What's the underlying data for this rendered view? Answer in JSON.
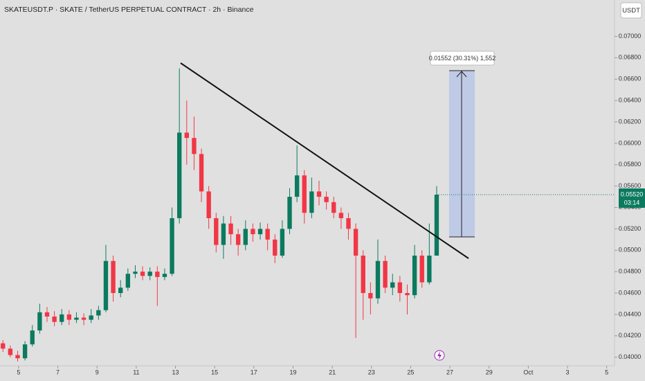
{
  "chart_data": {
    "type": "candlestick",
    "title": "SKATEUSDT.P · SKATE / TetherUS PERPETUAL CONTRACT · 2h · Binance",
    "currency": "USDT",
    "up_color": "#0b7a5e",
    "down_color": "#f23645",
    "x": [
      4.2,
      4.575,
      4.95,
      5.325,
      5.7,
      6.075,
      6.45,
      6.825,
      7.2,
      7.575,
      7.95,
      8.325,
      8.7,
      9.075,
      9.45,
      9.825,
      10.2,
      10.575,
      10.95,
      11.325,
      11.7,
      12.075,
      12.45,
      12.825,
      13.2,
      13.575,
      13.95,
      14.325,
      14.7,
      15.075,
      15.45,
      15.825,
      16.2,
      16.575,
      16.95,
      17.325,
      17.7,
      18.075,
      18.45,
      18.825,
      19.2,
      19.575,
      19.95,
      20.325,
      20.7,
      21.075,
      21.45,
      21.825,
      22.2,
      22.575,
      22.95,
      23.325,
      23.7,
      24.075,
      24.45,
      24.825,
      25.2,
      25.575,
      25.95,
      26.325
    ],
    "open": [
      0.0413,
      0.0408,
      0.0402,
      0.0399,
      0.0412,
      0.0425,
      0.0442,
      0.0438,
      0.0433,
      0.044,
      0.0435,
      0.0437,
      0.0435,
      0.0439,
      0.0444,
      0.049,
      0.046,
      0.0465,
      0.0478,
      0.048,
      0.0476,
      0.048,
      0.0475,
      0.0478,
      0.053,
      0.061,
      0.0605,
      0.059,
      0.0555,
      0.053,
      0.0505,
      0.0525,
      0.0515,
      0.0505,
      0.052,
      0.0515,
      0.052,
      0.051,
      0.0495,
      0.052,
      0.055,
      0.057,
      0.0535,
      0.0555,
      0.055,
      0.0545,
      0.0535,
      0.053,
      0.052,
      0.0495,
      0.046,
      0.0455,
      0.049,
      0.0465,
      0.047,
      0.046,
      0.0458,
      0.0495,
      0.047,
      0.0495
    ],
    "high": [
      0.0416,
      0.0411,
      0.0406,
      0.0415,
      0.043,
      0.045,
      0.0447,
      0.0443,
      0.0445,
      0.0444,
      0.0442,
      0.0441,
      0.0445,
      0.0448,
      0.0505,
      0.0495,
      0.0472,
      0.0483,
      0.0486,
      0.0485,
      0.0484,
      0.0485,
      0.0483,
      0.054,
      0.067,
      0.064,
      0.0625,
      0.0595,
      0.056,
      0.0535,
      0.0532,
      0.0532,
      0.052,
      0.0528,
      0.0525,
      0.0526,
      0.0525,
      0.0515,
      0.0528,
      0.0558,
      0.0598,
      0.0575,
      0.0568,
      0.0565,
      0.0555,
      0.055,
      0.054,
      0.0535,
      0.0525,
      0.05,
      0.047,
      0.051,
      0.0495,
      0.0478,
      0.0476,
      0.0468,
      0.0505,
      0.05,
      0.0525,
      0.056
    ],
    "low": [
      0.0405,
      0.04,
      0.0396,
      0.0397,
      0.041,
      0.0422,
      0.0433,
      0.0429,
      0.043,
      0.043,
      0.0432,
      0.043,
      0.0432,
      0.0435,
      0.0442,
      0.0452,
      0.0456,
      0.0462,
      0.0474,
      0.0472,
      0.0472,
      0.0448,
      0.0472,
      0.0476,
      0.0525,
      0.058,
      0.0575,
      0.0545,
      0.052,
      0.0498,
      0.0492,
      0.0505,
      0.0495,
      0.05,
      0.0508,
      0.051,
      0.05,
      0.0488,
      0.0493,
      0.0515,
      0.0545,
      0.0525,
      0.053,
      0.0542,
      0.0538,
      0.053,
      0.052,
      0.051,
      0.0418,
      0.0435,
      0.044,
      0.045,
      0.046,
      0.0458,
      0.0452,
      0.044,
      0.0455,
      0.0465,
      0.0468,
      0.0495
    ],
    "close": [
      0.0408,
      0.0402,
      0.0399,
      0.0412,
      0.0425,
      0.0442,
      0.0438,
      0.0433,
      0.044,
      0.0435,
      0.0437,
      0.0435,
      0.0439,
      0.0444,
      0.049,
      0.046,
      0.0465,
      0.0478,
      0.048,
      0.0476,
      0.048,
      0.0475,
      0.0478,
      0.053,
      0.061,
      0.0605,
      0.059,
      0.0555,
      0.053,
      0.0505,
      0.0525,
      0.0515,
      0.0505,
      0.052,
      0.0515,
      0.052,
      0.051,
      0.0495,
      0.052,
      0.055,
      0.057,
      0.0535,
      0.0555,
      0.055,
      0.0545,
      0.0535,
      0.053,
      0.052,
      0.0495,
      0.046,
      0.0455,
      0.049,
      0.0465,
      0.047,
      0.046,
      0.0458,
      0.0495,
      0.047,
      0.0495,
      0.0552
    ],
    "xlim": [
      4.05,
      35.4
    ],
    "xticks": [
      5,
      7,
      9,
      11,
      13,
      15,
      17,
      19,
      21,
      23,
      25,
      27,
      29,
      {
        "value": 31,
        "label": "Oct"
      },
      {
        "value": 33,
        "label": "3"
      },
      {
        "value": 35,
        "label": "5"
      }
    ],
    "ylim": [
      0.0392,
      0.0734
    ],
    "yticks": [
      {
        "value": 0.04,
        "label": "0.04000"
      },
      {
        "value": 0.042,
        "label": "0.04200"
      },
      {
        "value": 0.044,
        "label": "0.04400"
      },
      {
        "value": 0.046,
        "label": "0.04600"
      },
      {
        "value": 0.048,
        "label": "0.04800"
      },
      {
        "value": 0.05,
        "label": "0.05000"
      },
      {
        "value": 0.052,
        "label": "0.05200"
      },
      {
        "value": 0.054,
        "label": "0.05400"
      },
      {
        "value": 0.056,
        "label": "0.05600"
      },
      {
        "value": 0.058,
        "label": "0.05800"
      },
      {
        "value": 0.06,
        "label": "0.06000"
      },
      {
        "value": 0.062,
        "label": "0.06200"
      },
      {
        "value": 0.064,
        "label": "0.06400"
      },
      {
        "value": 0.066,
        "label": "0.06600"
      },
      {
        "value": 0.068,
        "label": "0.06800"
      },
      {
        "value": 0.07,
        "label": "0.07000"
      }
    ],
    "last_price": "0.05520",
    "countdown": "03:14",
    "measure_label": "0.01552 (30.31%) 1,552"
  }
}
